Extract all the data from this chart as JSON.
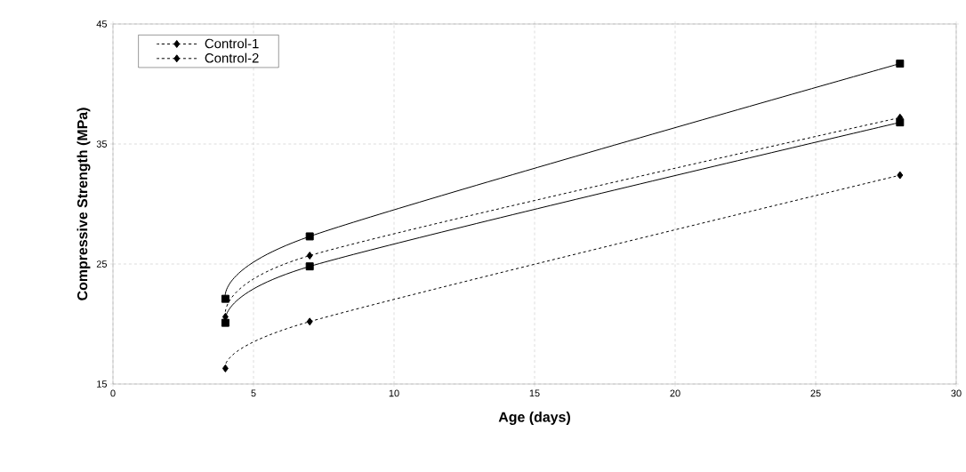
{
  "chart_data": {
    "type": "line",
    "xlabel": "Age (days)",
    "ylabel": "Compressive Strength (MPa)",
    "xlim": [
      0,
      30
    ],
    "xticks": [
      0,
      5,
      10,
      15,
      20,
      25,
      30
    ],
    "ylim": [
      15,
      45
    ],
    "yticks": [
      15,
      25,
      35,
      45
    ],
    "grid": true,
    "legend": "top left",
    "series": [
      {
        "name": "Control-1",
        "color": "#000000",
        "marker": "diamond",
        "line_style": "dashed",
        "x": [
          4,
          7,
          28
        ],
        "values": [
          16.3,
          20.2,
          32.4
        ]
      },
      {
        "color": "#000000",
        "marker": "square",
        "line_style": "solid",
        "x": [
          4,
          7,
          28
        ],
        "values": [
          20.1,
          24.8,
          36.8
        ]
      },
      {
        "name": "Control-2",
        "color": "#000000",
        "marker": "diamond",
        "line_style": "dashed",
        "x": [
          4,
          7,
          28
        ],
        "values": [
          20.6,
          25.7,
          37.2
        ]
      },
      {
        "color": "#000000",
        "marker": "square",
        "line_style": "solid",
        "x": [
          4,
          7,
          28
        ],
        "values": [
          22.1,
          27.3,
          41.7
        ]
      }
    ]
  }
}
